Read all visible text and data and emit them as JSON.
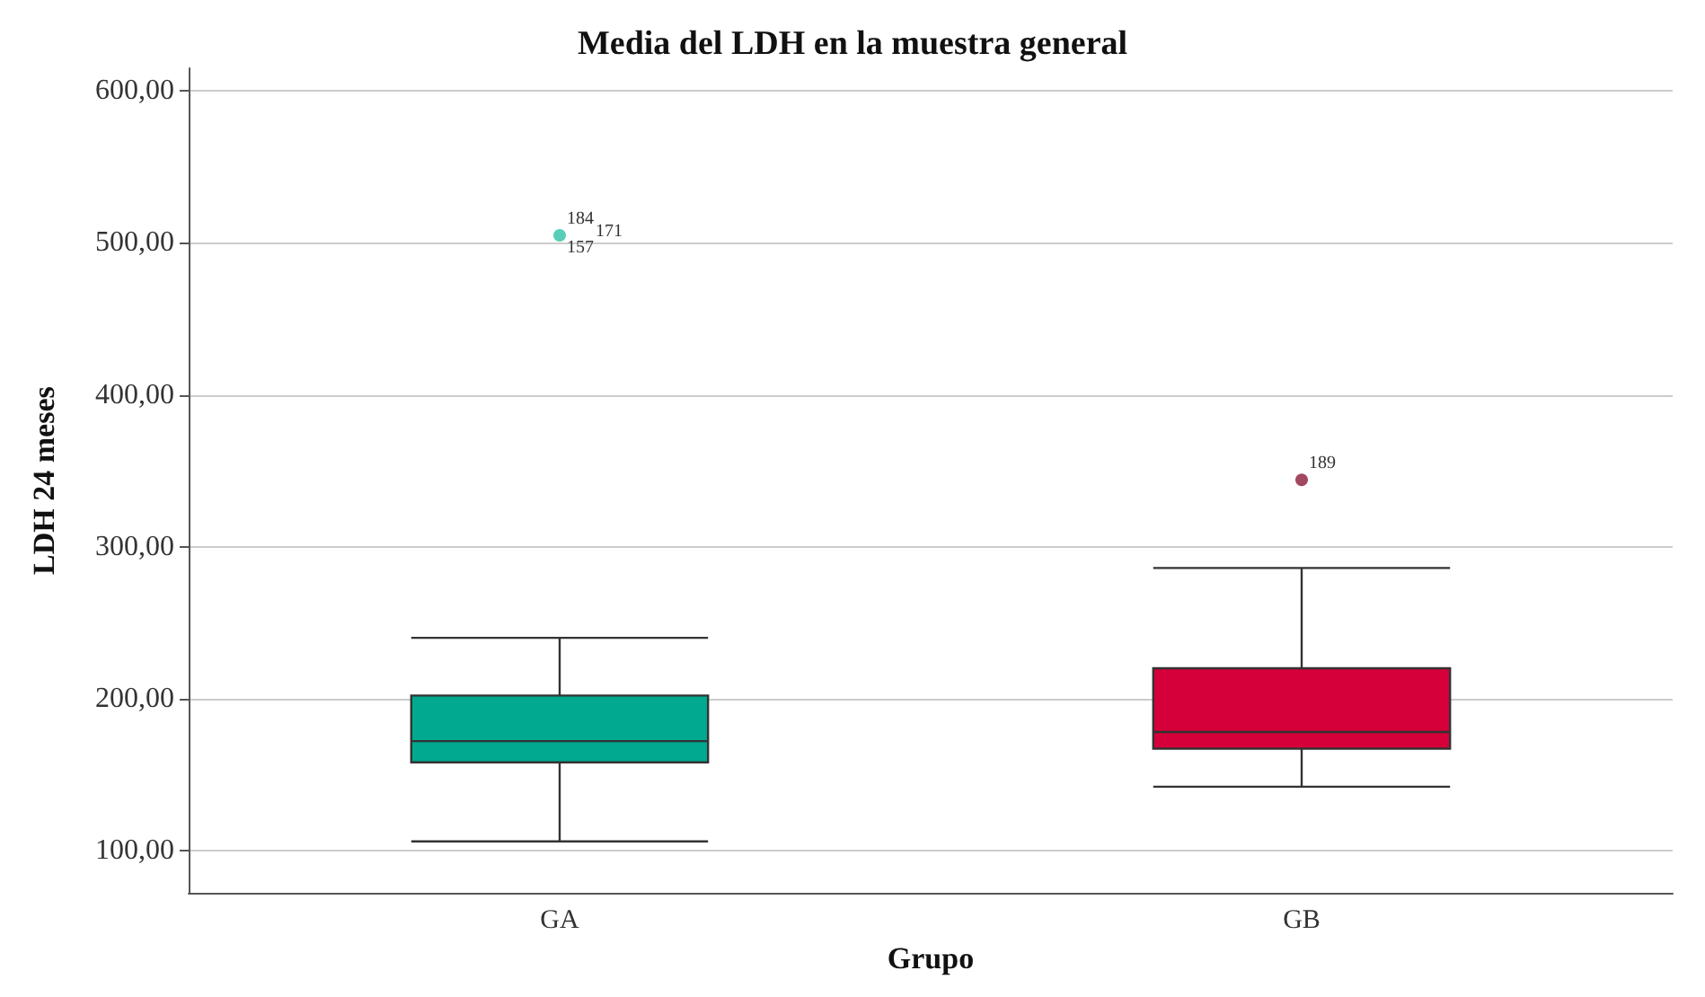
{
  "chart_data": {
    "type": "box",
    "title": "Media del LDH en la muestra general",
    "xlabel": "Grupo",
    "ylabel": "LDH 24 meses",
    "categories": [
      "GA",
      "GB"
    ],
    "boxes": [
      {
        "low": 106,
        "q1": 158,
        "median": 172,
        "q3": 202,
        "high": 240
      },
      {
        "low": 142,
        "q1": 167,
        "median": 178,
        "q3": 220,
        "high": 286
      }
    ],
    "series": [
      {
        "type": "scatter",
        "x": [
          "GA",
          "GB"
        ],
        "values": [
          505,
          344
        ],
        "colors": [
          "#2fc0a8",
          "#8b1a3a"
        ]
      }
    ],
    "colors": [
      "#00a98f",
      "#d5003a"
    ],
    "ylim": [
      72,
      615
    ],
    "yticks": [
      {
        "value": 100,
        "label": "100,00"
      },
      {
        "value": 200,
        "label": "200,00"
      },
      {
        "value": 300,
        "label": "300,00"
      },
      {
        "value": 400,
        "label": "400,00"
      },
      {
        "value": 500,
        "label": "500,00"
      },
      {
        "value": 600,
        "label": "600,00"
      }
    ],
    "grid": "y",
    "annotations": [
      {
        "text": "184",
        "x": "GA",
        "y": 505
      },
      {
        "text": "171",
        "x": "GA",
        "y": 505
      },
      {
        "text": "157",
        "x": "GA",
        "y": 505
      },
      {
        "text": "189",
        "x": "GB",
        "y": 344
      }
    ]
  }
}
